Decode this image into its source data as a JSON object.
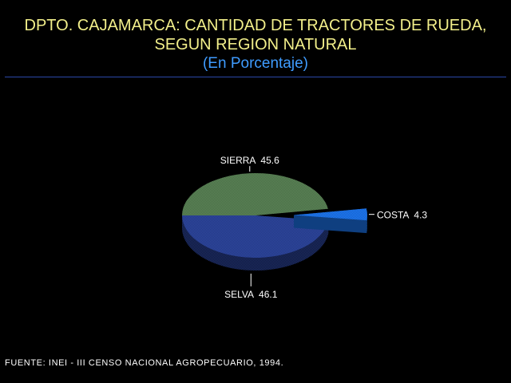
{
  "header": {
    "title_line1": "DPTO. CAJAMARCA: CANTIDAD DE TRACTORES DE RUEDA,",
    "title_line2": "SEGUN REGION NATURAL",
    "subtitle": "(En Porcentaje)"
  },
  "chart_data": {
    "type": "pie",
    "title": "DPTO. CAJAMARCA: CANTIDAD DE TRACTORES DE RUEDA, SEGUN REGION NATURAL",
    "subtitle": "(En Porcentaje)",
    "unit": "%",
    "three_d": true,
    "slices": [
      {
        "label": "SIERRA",
        "value": 45.6,
        "value_text": "45.6",
        "color": "#5f8a5a",
        "exploded": false
      },
      {
        "label": "COSTA",
        "value": 4.3,
        "value_text": "4.3",
        "color": "#1e7dff",
        "exploded": true
      },
      {
        "label": "SELVA",
        "value": 46.1,
        "value_text": "46.1",
        "color": "#2f49a6",
        "exploded": false
      }
    ]
  },
  "footer": {
    "source": "FUENTE: INEI - III CENSO NACIONAL AGROPECUARIO, 1994."
  }
}
